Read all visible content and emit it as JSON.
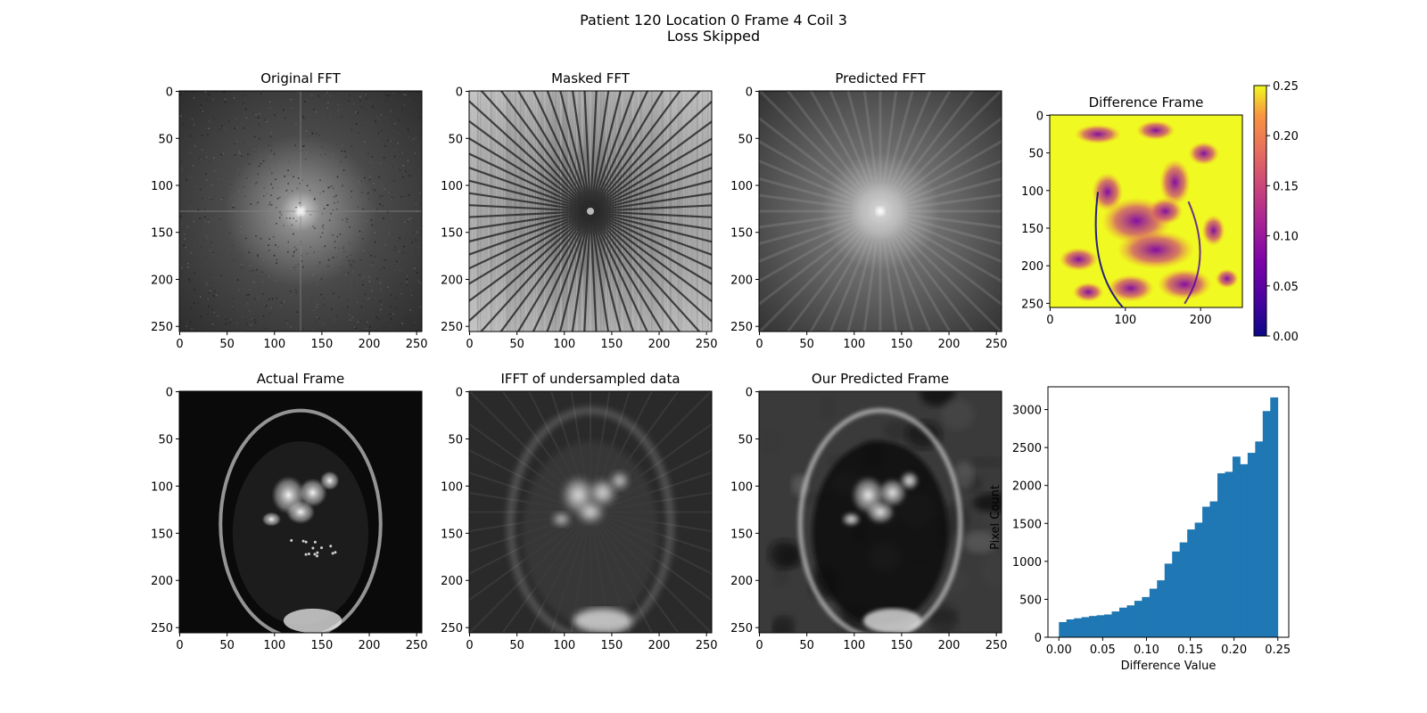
{
  "figure": {
    "title_line1": "Patient 120 Location 0 Frame 4 Coil 3",
    "title_line2": "Loss Skipped"
  },
  "panels": [
    {
      "id": "orig-fft",
      "title": "Original FFT",
      "kind": "fft",
      "xticks": [
        "0",
        "50",
        "100",
        "150",
        "200",
        "250"
      ],
      "yticks": [
        "0",
        "50",
        "100",
        "150",
        "200",
        "250"
      ]
    },
    {
      "id": "masked-fft",
      "title": "Masked FFT",
      "kind": "masked",
      "xticks": [
        "0",
        "50",
        "100",
        "150",
        "200",
        "250"
      ],
      "yticks": [
        "0",
        "50",
        "100",
        "150",
        "200",
        "250"
      ]
    },
    {
      "id": "pred-fft",
      "title": "Predicted FFT",
      "kind": "predfft",
      "xticks": [
        "0",
        "50",
        "100",
        "150",
        "200",
        "250"
      ],
      "yticks": [
        "0",
        "50",
        "100",
        "150",
        "200",
        "250"
      ]
    },
    {
      "id": "diff-frame",
      "title": "Difference Frame",
      "kind": "diff",
      "xticks": [
        "0",
        "100",
        "200"
      ],
      "yticks": [
        "0",
        "50",
        "100",
        "150",
        "200",
        "250"
      ]
    },
    {
      "id": "actual-frame",
      "title": "Actual Frame",
      "kind": "mri",
      "xticks": [
        "0",
        "50",
        "100",
        "150",
        "200",
        "250"
      ],
      "yticks": [
        "0",
        "50",
        "100",
        "150",
        "200",
        "250"
      ]
    },
    {
      "id": "ifft-under",
      "title": "IFFT of undersampled data",
      "kind": "blurmri",
      "xticks": [
        "0",
        "50",
        "100",
        "150",
        "200",
        "250"
      ],
      "yticks": [
        "0",
        "50",
        "100",
        "150",
        "200",
        "250"
      ]
    },
    {
      "id": "pred-frame",
      "title": "Our Predicted Frame",
      "kind": "predmri",
      "xticks": [
        "0",
        "50",
        "100",
        "150",
        "200",
        "250"
      ],
      "yticks": [
        "0",
        "50",
        "100",
        "150",
        "200",
        "250"
      ]
    }
  ],
  "colorbar": {
    "colormap": "plasma",
    "range": [
      0,
      0.25
    ],
    "tick_labels": [
      "0.00",
      "0.05",
      "0.10",
      "0.15",
      "0.20",
      "0.25"
    ]
  },
  "chart_data": {
    "type": "bar",
    "title": "",
    "xlabel": "Difference Value",
    "ylabel": "Pixel Count",
    "xlim": [
      -0.0125,
      0.2625
    ],
    "ylim": [
      0,
      3300
    ],
    "bin_width": 0.00862,
    "bin_starts": [
      0.0,
      0.00862,
      0.01724,
      0.02586,
      0.03448,
      0.0431,
      0.05172,
      0.06034,
      0.06897,
      0.07759,
      0.08621,
      0.09483,
      0.10345,
      0.11207,
      0.12069,
      0.12931,
      0.13793,
      0.14655,
      0.15517,
      0.16379,
      0.17241,
      0.18103,
      0.18966,
      0.19828,
      0.2069,
      0.21552,
      0.22414,
      0.23276,
      0.24138
    ],
    "values": [
      200,
      235,
      250,
      265,
      280,
      290,
      300,
      340,
      390,
      420,
      480,
      530,
      640,
      750,
      970,
      1130,
      1250,
      1420,
      1510,
      1720,
      1790,
      2160,
      2180,
      2380,
      2280,
      2430,
      2580,
      2980,
      3160
    ],
    "xticks": [
      0.0,
      0.05,
      0.1,
      0.15,
      0.2,
      0.25
    ],
    "xtick_labels": [
      "0.00",
      "0.05",
      "0.10",
      "0.15",
      "0.20",
      "0.25"
    ],
    "yticks": [
      0,
      500,
      1000,
      1500,
      2000,
      2500,
      3000
    ],
    "ytick_labels": [
      "0",
      "500",
      "1000",
      "1500",
      "2000",
      "2500",
      "3000"
    ],
    "bar_color": "#1f77b4"
  }
}
